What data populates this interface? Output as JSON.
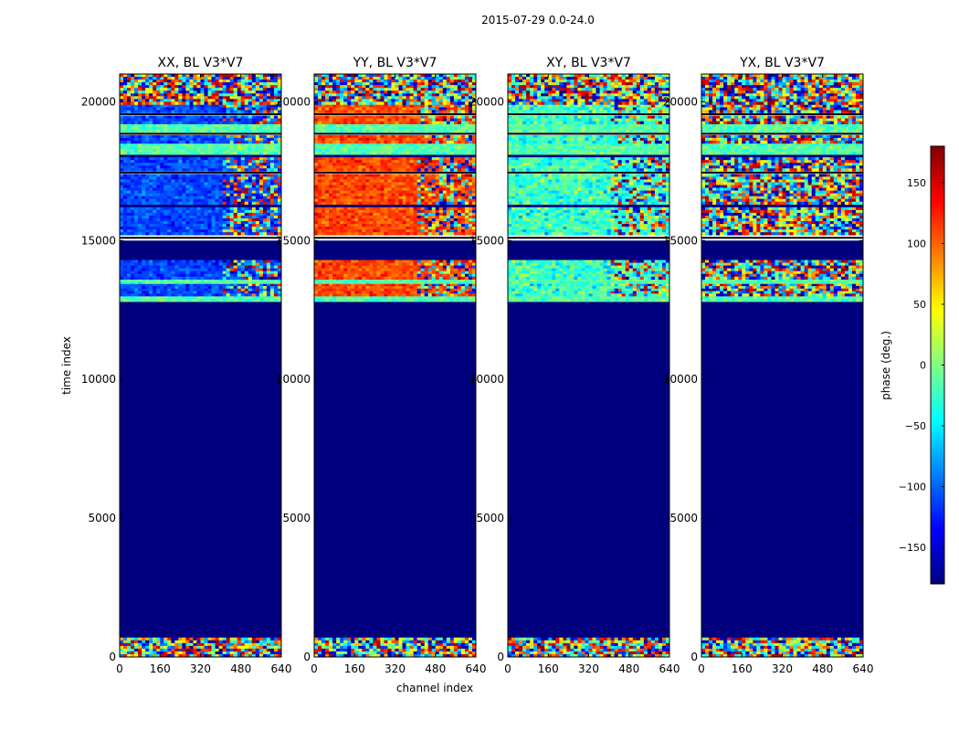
{
  "chart_data": {
    "type": "heatmap",
    "suptitle": "2015-07-29 0.0-24.0",
    "xlabel": "channel index",
    "ylabel": "time index",
    "xlim": [
      0,
      640
    ],
    "ylim": [
      0,
      21000
    ],
    "xticks": [
      "0",
      "160",
      "320",
      "480",
      "640"
    ],
    "yticks": [
      "0",
      "5000",
      "10000",
      "15000",
      "20000"
    ],
    "colorbar": {
      "label": "phase (deg.)",
      "range": [
        -180,
        180
      ],
      "ticks": [
        "150",
        "100",
        "50",
        "0",
        "−50",
        "−100",
        "−150"
      ],
      "colormap": "jet",
      "colors": [
        "#00007f",
        "#0000ff",
        "#007fff",
        "#00ffff",
        "#7fff7f",
        "#ffff00",
        "#ff7f00",
        "#ff0000",
        "#7f0000"
      ]
    },
    "panels": [
      {
        "title": "XX, BL V3*V7",
        "tone": "blue",
        "character": "mostly blue/cyan phases in upper rows"
      },
      {
        "title": "YY, BL V3*V7",
        "tone": "red",
        "character": "mostly orange/red phases in upper rows"
      },
      {
        "title": "XY, BL V3*V7",
        "tone": "green",
        "character": "mixed green/cyan noise in upper rows"
      },
      {
        "title": "YX, BL V3*V7",
        "tone": "noise",
        "character": "full-range noisy phases in upper rows"
      }
    ],
    "flagged_value": -180,
    "rows": [
      {
        "t0": 0,
        "t1": 700,
        "mode": "noise"
      },
      {
        "t0": 700,
        "t1": 12800,
        "mode": "flag"
      },
      {
        "t0": 12800,
        "t1": 13000,
        "mode": "green"
      },
      {
        "t0": 13000,
        "t1": 13450,
        "mode": "tone"
      },
      {
        "t0": 13450,
        "t1": 13600,
        "mode": "green"
      },
      {
        "t0": 13600,
        "t1": 14300,
        "mode": "tone"
      },
      {
        "t0": 14300,
        "t1": 15000,
        "mode": "flag"
      },
      {
        "t0": 15000,
        "t1": 15200,
        "mode": "gap"
      },
      {
        "t0": 15200,
        "t1": 16200,
        "mode": "tone"
      },
      {
        "t0": 16200,
        "t1": 16300,
        "mode": "flag"
      },
      {
        "t0": 16300,
        "t1": 17400,
        "mode": "tone"
      },
      {
        "t0": 17400,
        "t1": 17500,
        "mode": "gap"
      },
      {
        "t0": 17500,
        "t1": 18000,
        "mode": "tone"
      },
      {
        "t0": 18000,
        "t1": 18100,
        "mode": "flag"
      },
      {
        "t0": 18100,
        "t1": 18500,
        "mode": "green"
      },
      {
        "t0": 18500,
        "t1": 18800,
        "mode": "tone"
      },
      {
        "t0": 18800,
        "t1": 18900,
        "mode": "gap"
      },
      {
        "t0": 18900,
        "t1": 19200,
        "mode": "green"
      },
      {
        "t0": 19200,
        "t1": 19500,
        "mode": "tone"
      },
      {
        "t0": 19500,
        "t1": 19600,
        "mode": "gap"
      },
      {
        "t0": 19600,
        "t1": 19900,
        "mode": "tone"
      },
      {
        "t0": 19900,
        "t1": 21000,
        "mode": "noise"
      }
    ]
  }
}
